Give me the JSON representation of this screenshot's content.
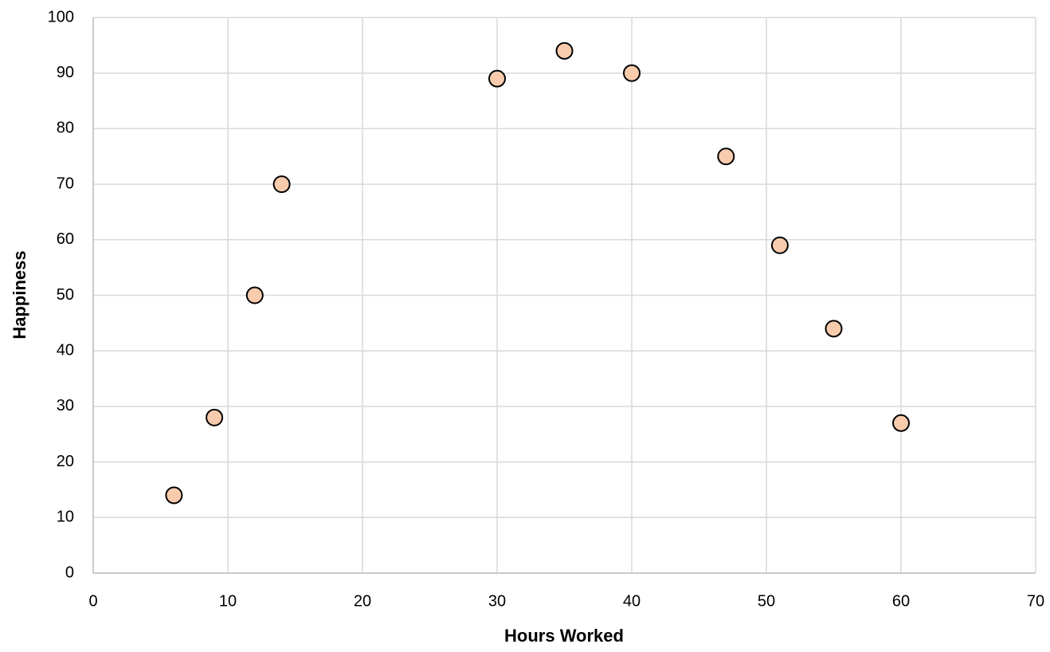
{
  "chart_data": {
    "type": "scatter",
    "x_label": "Hours Worked",
    "y_label": "Happiness",
    "series": [
      {
        "name": "Happiness",
        "color": "#f8cbad",
        "x": [
          6,
          9,
          12,
          14,
          30,
          35,
          40,
          47,
          51,
          55,
          60
        ],
        "values": [
          14,
          28,
          50,
          70,
          89,
          94,
          90,
          75,
          59,
          44,
          27
        ]
      }
    ],
    "xlim": [
      0,
      70
    ],
    "xticks": [
      0,
      10,
      20,
      30,
      40,
      50,
      60,
      70
    ],
    "ylim": [
      0,
      100
    ],
    "yticks": [
      0,
      10,
      20,
      30,
      40,
      50,
      60,
      70,
      80,
      90,
      100
    ],
    "grid": true
  }
}
